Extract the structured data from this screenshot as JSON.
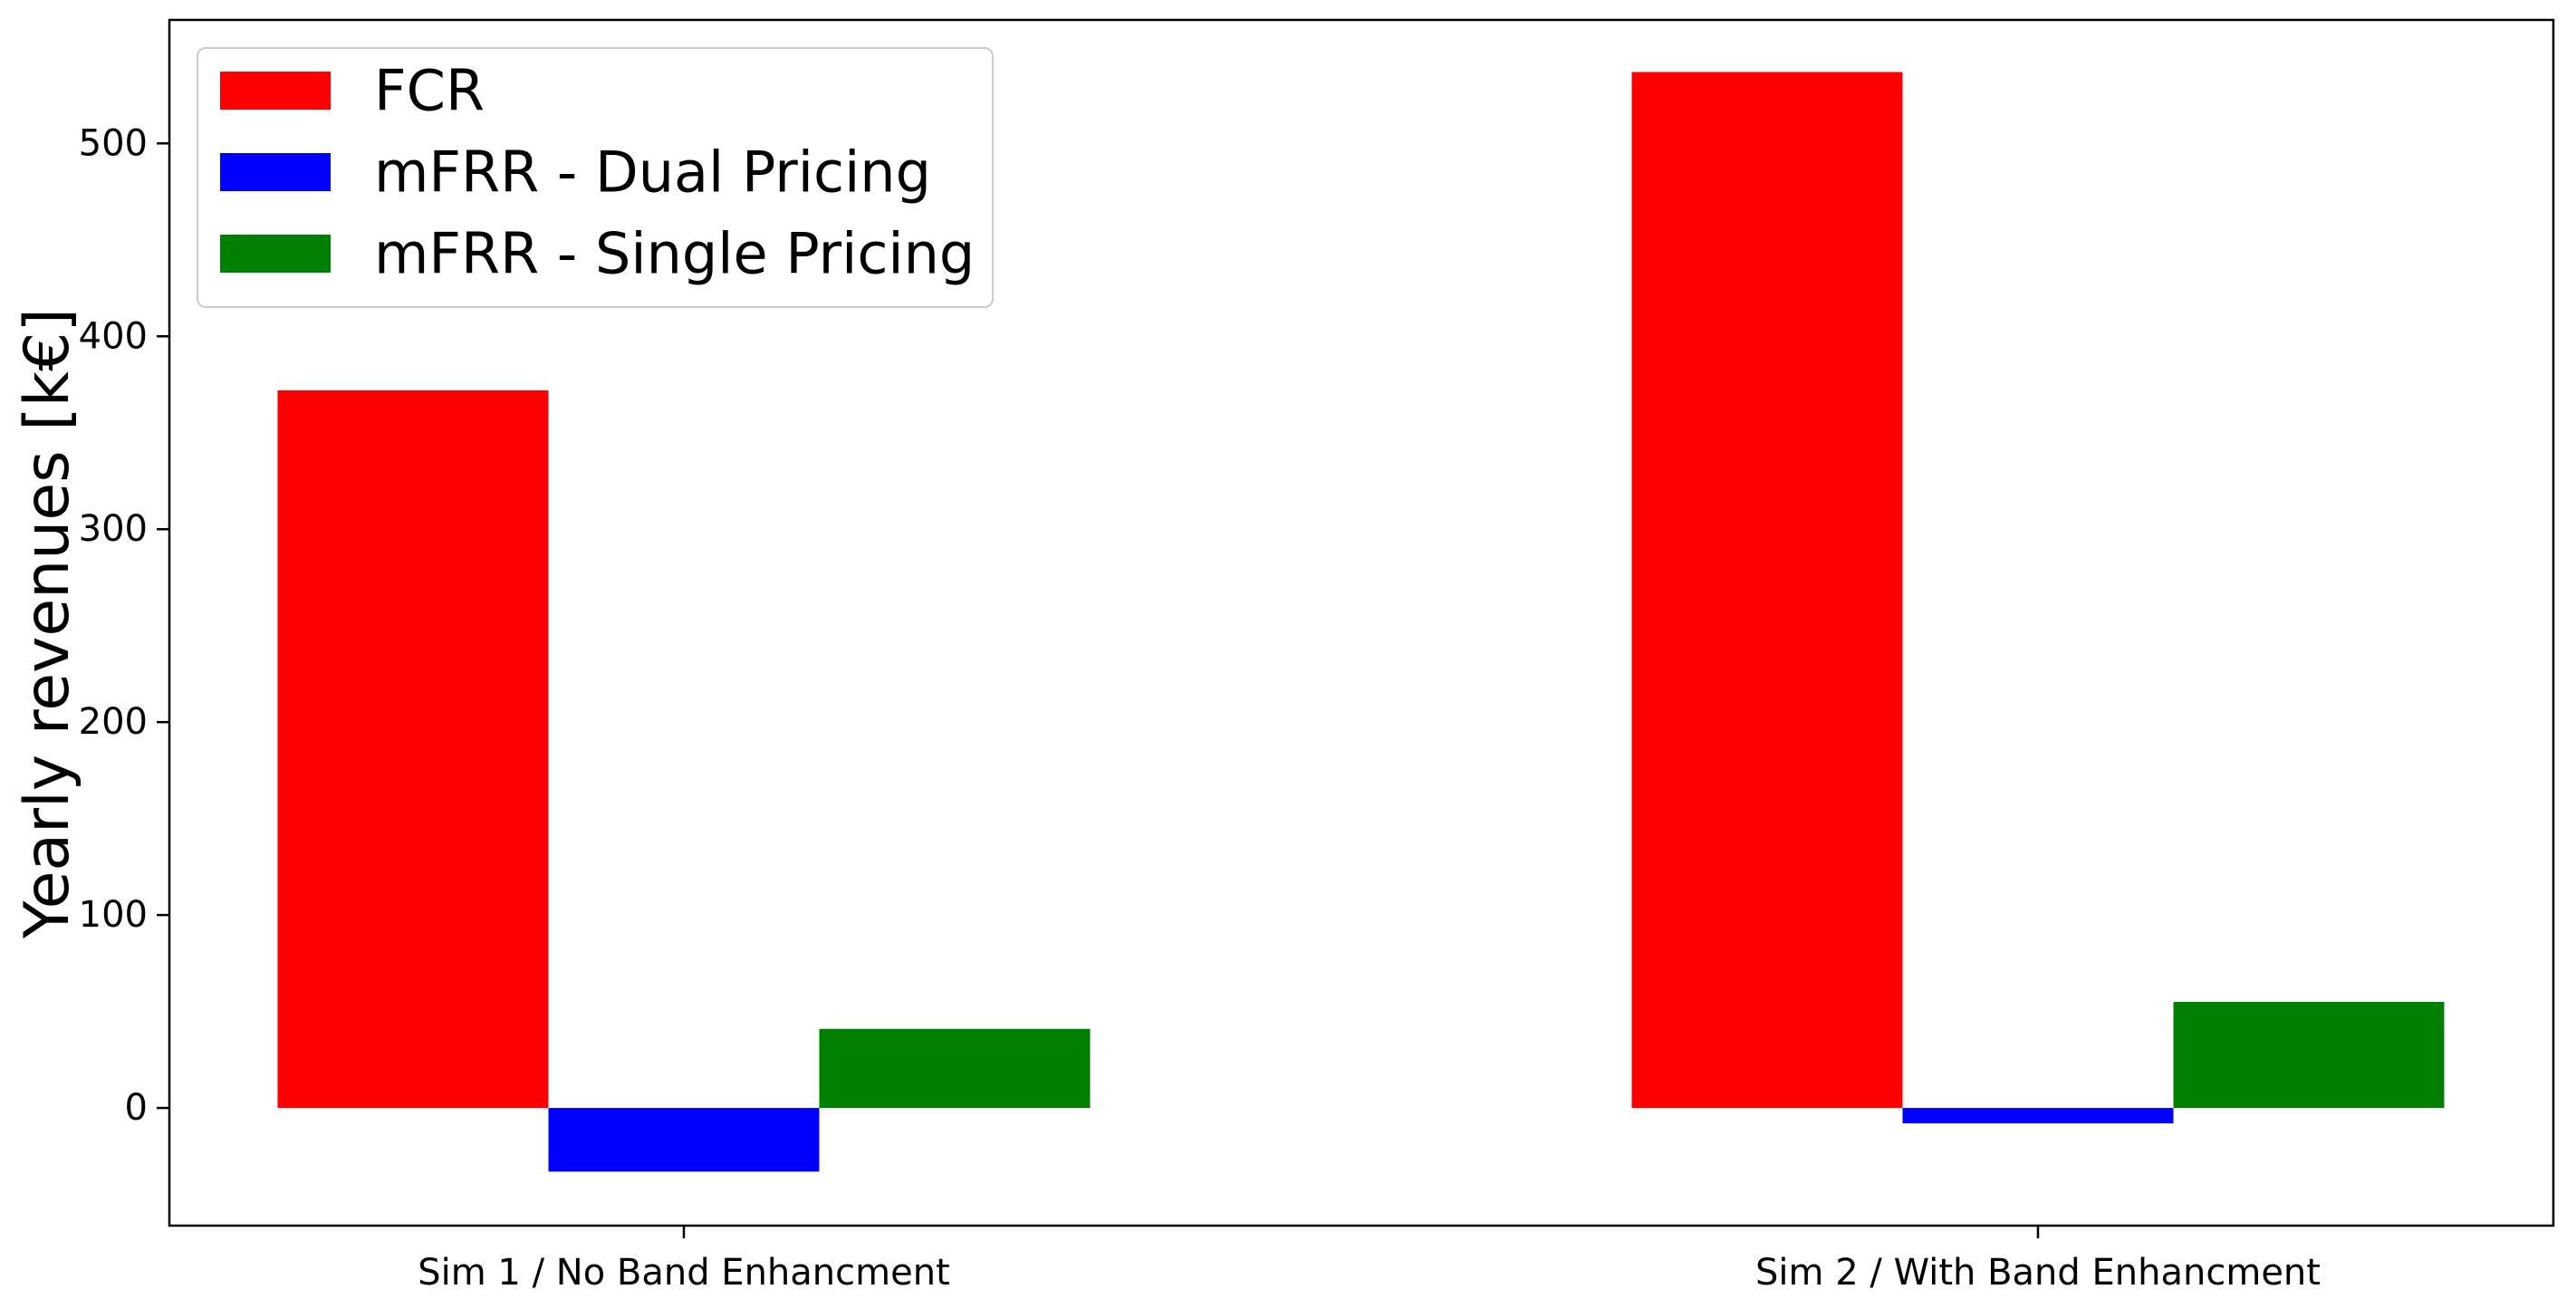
{
  "chart_data": {
    "type": "bar",
    "title": "",
    "xlabel": "",
    "ylabel": "Yearly revenues [k€]",
    "categories": [
      "Sim 1 / No Band Enhancment",
      "Sim 2 / With Band Enhancment"
    ],
    "series": [
      {
        "name": "FCR",
        "values": [
          372,
          537
        ],
        "color": "#ff0000"
      },
      {
        "name": "mFRR - Dual Pricing",
        "values": [
          -33,
          -8
        ],
        "color": "#0000ff"
      },
      {
        "name": "mFRR - Single Pricing",
        "values": [
          41,
          55
        ],
        "color": "#008000"
      }
    ],
    "ylim": [
      -61,
      564
    ],
    "yticks": [
      0,
      100,
      200,
      300,
      400,
      500
    ],
    "grid": false,
    "legend_position": "top-left"
  }
}
